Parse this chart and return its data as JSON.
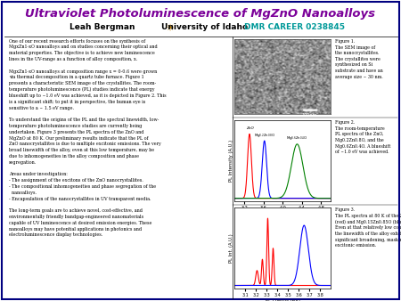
{
  "title": "Ultraviolet Photoluminescence of MgZnO Nanoalloys",
  "author_line": "Leah Bergman",
  "university": "University of Idaho",
  "grant": "DMR CAREER 0238845",
  "title_color": "#7B0099",
  "author_color": "#000000",
  "university_color": "#000000",
  "grant_color": "#009999",
  "background_color": "#FFFFFF",
  "body_text_left": "One of our recent research efforts focuses on the synthesis of\nMgxZn1-xO nanoalloys and on studies concerning their optical and\nmaterial properties. The objective is to achieve new luminescence\nlines in the UV-range as a function of alloy composition, x.\n\nMgxZn1-xO nanoalloys at composition range x = 0-0.6 were grown\nvia thermal decomposition in a quartz tube furnace. Figure 1\npresents a characteristic SEM image of the crystallites. The room-\ntemperature photoluminescence (PL) studies indicate that energy\nblueshift up to ~1.0 eV was achieved, as it is depicted in Figure 2. This\nis a significant shift; to put it in perspective, the human eye is\nsensitive to a ~ 1.5 eV range.\n\nTo understand the origins of the PL and the spectral linewidth, low-\ntemperature photoluminescence studies are currently being\nundertaken. Figure 3 presents the PL spectra of the ZnO and\nMgZnO at 80 K. Our preliminary results indicate that the PL of\nZnO nanocrystallites is due to multiple excitonic emissions. The very\nbroad linewidth of the alloy, even at this low temperature, may be\ndue to inhomogeneities in the alloy composition and phase\nsegregation.\n\nAreas under investigation:\n- The assignment of the excitons of the ZnO nanocrystallites.\n- The compositional inhomogeneities and phase segregation of the\n  nanoalloys.\n- Encapsulation of the nanocrystallites in UV transparent media.\n\nThe long-term goals are to achieve novel, cost-effective, and\nenvironmentally friendly bandgap-engineered nanomaterials\ncapable of UV luminescence at desired emission energies. These\nnanoalloys may have potential applications in photonics and\nelectroluminescence display technologies.",
  "fig1_caption": "Figure 1.\nThe SEM image of\nthe nanocrystallites.\nThe crystallites were\nsynthesized on Si\nsubstrate and have an\naverage size ~ 30 nm.",
  "fig2_caption": "Figure 2.\nThe room-temperature\nPL spectra of the ZnO,\nMg0.2Zn0.8O, and the\nMg0.6Zn0.4O. A blueshift\nof ~1.0 eV was achieved.",
  "fig3_caption": "Figure 3.\nThe PL spectra at 80 K of the ZnO\n(red) and Mg0.15Zn0.85O (blue).\nEven at that relatively low composition\nthe linewidth of the alloy exhibits a\nsignificant broadening, masking the\nexcitonic emission.",
  "border_color": "#000080"
}
